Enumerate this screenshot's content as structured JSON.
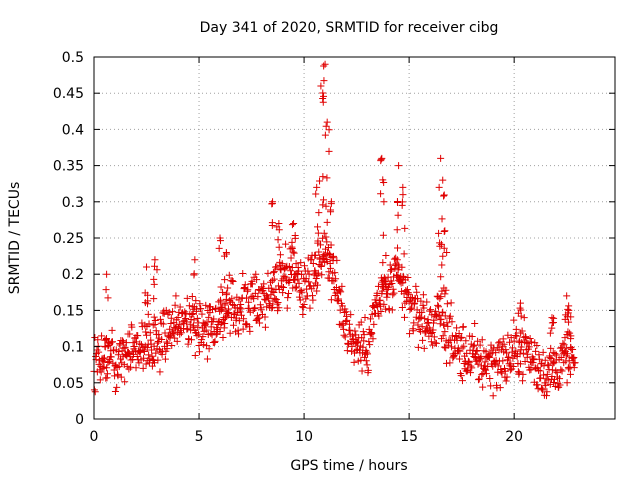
{
  "chart_data": {
    "type": "scatter",
    "title": "Day 341 of 2020, SRMTID for receiver cibg",
    "xlabel": "GPS time / hours",
    "ylabel": "SRMTID / TECUs",
    "xlim": [
      0,
      24.8
    ],
    "ylim": [
      0,
      0.5
    ],
    "x_ticks": [
      0,
      5,
      10,
      15,
      20
    ],
    "y_ticks": [
      0,
      0.05,
      0.1,
      0.15,
      0.2,
      0.25,
      0.3,
      0.35,
      0.4,
      0.45,
      0.5
    ],
    "x_tick_labels": [
      "0",
      "5",
      "10",
      "15",
      "20"
    ],
    "y_tick_labels": [
      "0",
      "0.05",
      "0.1",
      "0.15",
      "0.2",
      "0.25",
      "0.3",
      "0.35",
      "0.4",
      "0.45",
      "0.5"
    ],
    "grid": true,
    "marker": "+",
    "series_color": "#e00000",
    "point_spacing_hours": 0.02,
    "x_range": [
      0,
      22.9
    ],
    "trend": [
      [
        0.0,
        0.08
      ],
      [
        0.5,
        0.085
      ],
      [
        1.0,
        0.09
      ],
      [
        1.5,
        0.095
      ],
      [
        2.0,
        0.1
      ],
      [
        2.5,
        0.1
      ],
      [
        3.0,
        0.11
      ],
      [
        3.5,
        0.12
      ],
      [
        4.0,
        0.135
      ],
      [
        4.5,
        0.14
      ],
      [
        5.0,
        0.13
      ],
      [
        5.5,
        0.13
      ],
      [
        6.0,
        0.14
      ],
      [
        6.5,
        0.15
      ],
      [
        7.0,
        0.155
      ],
      [
        7.5,
        0.16
      ],
      [
        8.0,
        0.165
      ],
      [
        8.5,
        0.17
      ],
      [
        9.0,
        0.2
      ],
      [
        9.5,
        0.21
      ],
      [
        10.0,
        0.18
      ],
      [
        10.5,
        0.2
      ],
      [
        11.0,
        0.24
      ],
      [
        11.5,
        0.18
      ],
      [
        12.0,
        0.13
      ],
      [
        12.5,
        0.1
      ],
      [
        13.0,
        0.1
      ],
      [
        13.5,
        0.16
      ],
      [
        14.0,
        0.18
      ],
      [
        14.5,
        0.19
      ],
      [
        15.0,
        0.16
      ],
      [
        15.5,
        0.14
      ],
      [
        16.0,
        0.13
      ],
      [
        16.5,
        0.14
      ],
      [
        17.0,
        0.11
      ],
      [
        17.5,
        0.09
      ],
      [
        18.0,
        0.085
      ],
      [
        18.5,
        0.08
      ],
      [
        19.0,
        0.08
      ],
      [
        19.5,
        0.08
      ],
      [
        20.0,
        0.09
      ],
      [
        20.5,
        0.1
      ],
      [
        21.0,
        0.075
      ],
      [
        21.5,
        0.065
      ],
      [
        22.0,
        0.07
      ],
      [
        22.5,
        0.085
      ],
      [
        22.9,
        0.075
      ]
    ],
    "spikes": [
      [
        0.6,
        0.2
      ],
      [
        2.5,
        0.21
      ],
      [
        2.9,
        0.22
      ],
      [
        4.8,
        0.22
      ],
      [
        6.0,
        0.25
      ],
      [
        6.3,
        0.23
      ],
      [
        8.5,
        0.3
      ],
      [
        8.8,
        0.27
      ],
      [
        9.5,
        0.27
      ],
      [
        10.6,
        0.32
      ],
      [
        10.8,
        0.46
      ],
      [
        11.0,
        0.49
      ],
      [
        11.1,
        0.41
      ],
      [
        11.3,
        0.3
      ],
      [
        13.7,
        0.36
      ],
      [
        13.8,
        0.3
      ],
      [
        14.5,
        0.35
      ],
      [
        14.7,
        0.32
      ],
      [
        16.5,
        0.36
      ],
      [
        16.6,
        0.33
      ],
      [
        16.7,
        0.26
      ],
      [
        20.3,
        0.16
      ],
      [
        21.8,
        0.14
      ],
      [
        22.5,
        0.17
      ],
      [
        22.6,
        0.15
      ]
    ]
  }
}
